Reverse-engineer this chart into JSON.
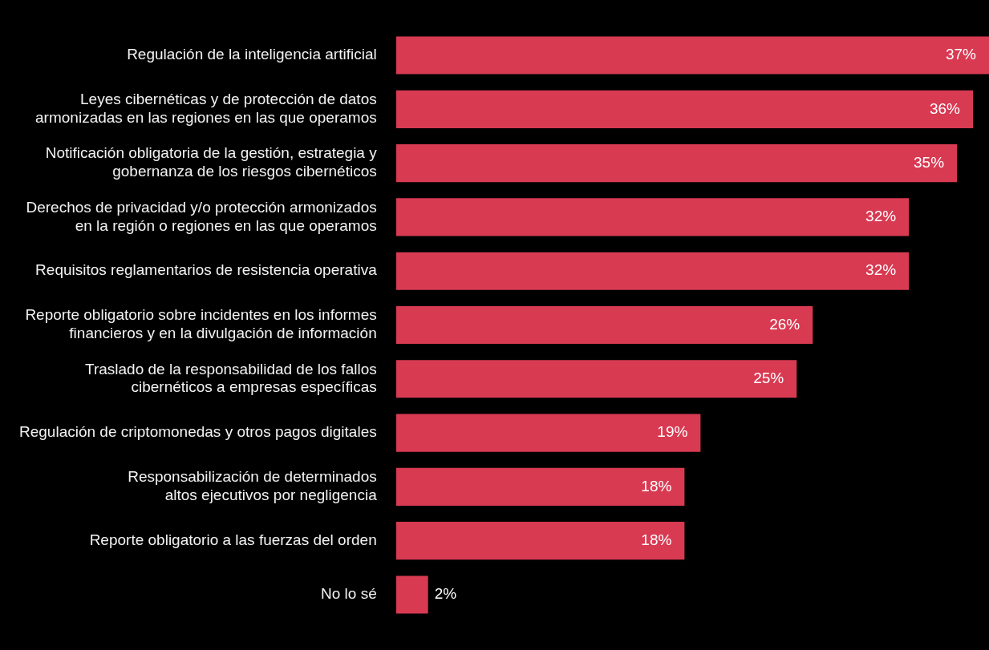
{
  "chart_data": {
    "type": "bar",
    "orientation": "horizontal",
    "categories": [
      "Regulación de la inteligencia artificial",
      "Leyes cibernéticas y de protección de datos\narmonizadas en las regiones en las que operamos",
      "Notificación obligatoria de la gestión, estrategia y\ngobernanza de los riesgos cibernéticos",
      "Derechos de privacidad y/o protección armonizados\nen la región o regiones en las que operamos",
      "Requisitos reglamentarios de resistencia operativa",
      "Reporte obligatorio sobre incidentes en los informes\nfinancieros y en la divulgación de información",
      "Traslado de la responsabilidad de los fallos\ncibernéticos a empresas específicas",
      "Regulación de criptomonedas y otros pagos digitales",
      "Responsabilización de determinados\naltos ejecutivos por negligencia",
      "Reporte obligatorio a las fuerzas del orden",
      "No lo sé"
    ],
    "values": [
      37,
      36,
      35,
      32,
      32,
      26,
      25,
      19,
      18,
      18,
      2
    ],
    "value_labels": [
      "37%",
      "36%",
      "35%",
      "32%",
      "32%",
      "26%",
      "25%",
      "19%",
      "18%",
      "18%",
      "2%"
    ],
    "color": "#d83a52",
    "xlim": [
      0,
      37
    ],
    "tick_labels": "y",
    "legend": false
  }
}
